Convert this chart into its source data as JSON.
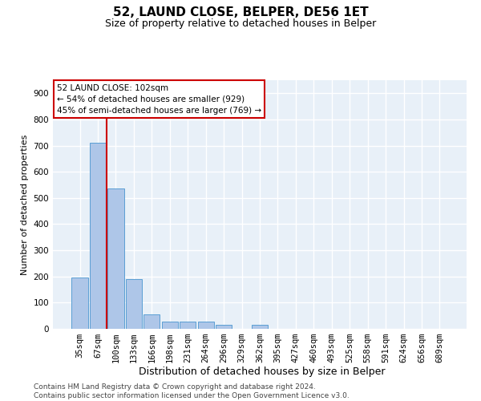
{
  "title": "52, LAUND CLOSE, BELPER, DE56 1ET",
  "subtitle": "Size of property relative to detached houses in Belper",
  "xlabel": "Distribution of detached houses by size in Belper",
  "ylabel": "Number of detached properties",
  "categories": [
    "35sqm",
    "67sqm",
    "100sqm",
    "133sqm",
    "166sqm",
    "198sqm",
    "231sqm",
    "264sqm",
    "296sqm",
    "329sqm",
    "362sqm",
    "395sqm",
    "427sqm",
    "460sqm",
    "493sqm",
    "525sqm",
    "558sqm",
    "591sqm",
    "624sqm",
    "656sqm",
    "689sqm"
  ],
  "values": [
    197,
    712,
    537,
    190,
    55,
    28,
    28,
    28,
    15,
    0,
    15,
    0,
    0,
    0,
    0,
    0,
    0,
    0,
    0,
    0,
    0
  ],
  "bar_color": "#aec6e8",
  "bar_edge_color": "#5a9fd4",
  "marker_line_color": "#cc0000",
  "annotation_text": "52 LAUND CLOSE: 102sqm\n← 54% of detached houses are smaller (929)\n45% of semi-detached houses are larger (769) →",
  "annotation_box_color": "#ffffff",
  "annotation_box_edge": "#cc0000",
  "ylim": [
    0,
    950
  ],
  "yticks": [
    0,
    100,
    200,
    300,
    400,
    500,
    600,
    700,
    800,
    900
  ],
  "background_color": "#e8f0f8",
  "grid_color": "#ffffff",
  "footer": "Contains HM Land Registry data © Crown copyright and database right 2024.\nContains public sector information licensed under the Open Government Licence v3.0.",
  "title_fontsize": 11,
  "subtitle_fontsize": 9,
  "xlabel_fontsize": 9,
  "ylabel_fontsize": 8,
  "tick_fontsize": 7.5,
  "footer_fontsize": 6.5,
  "annotation_fontsize": 7.5
}
